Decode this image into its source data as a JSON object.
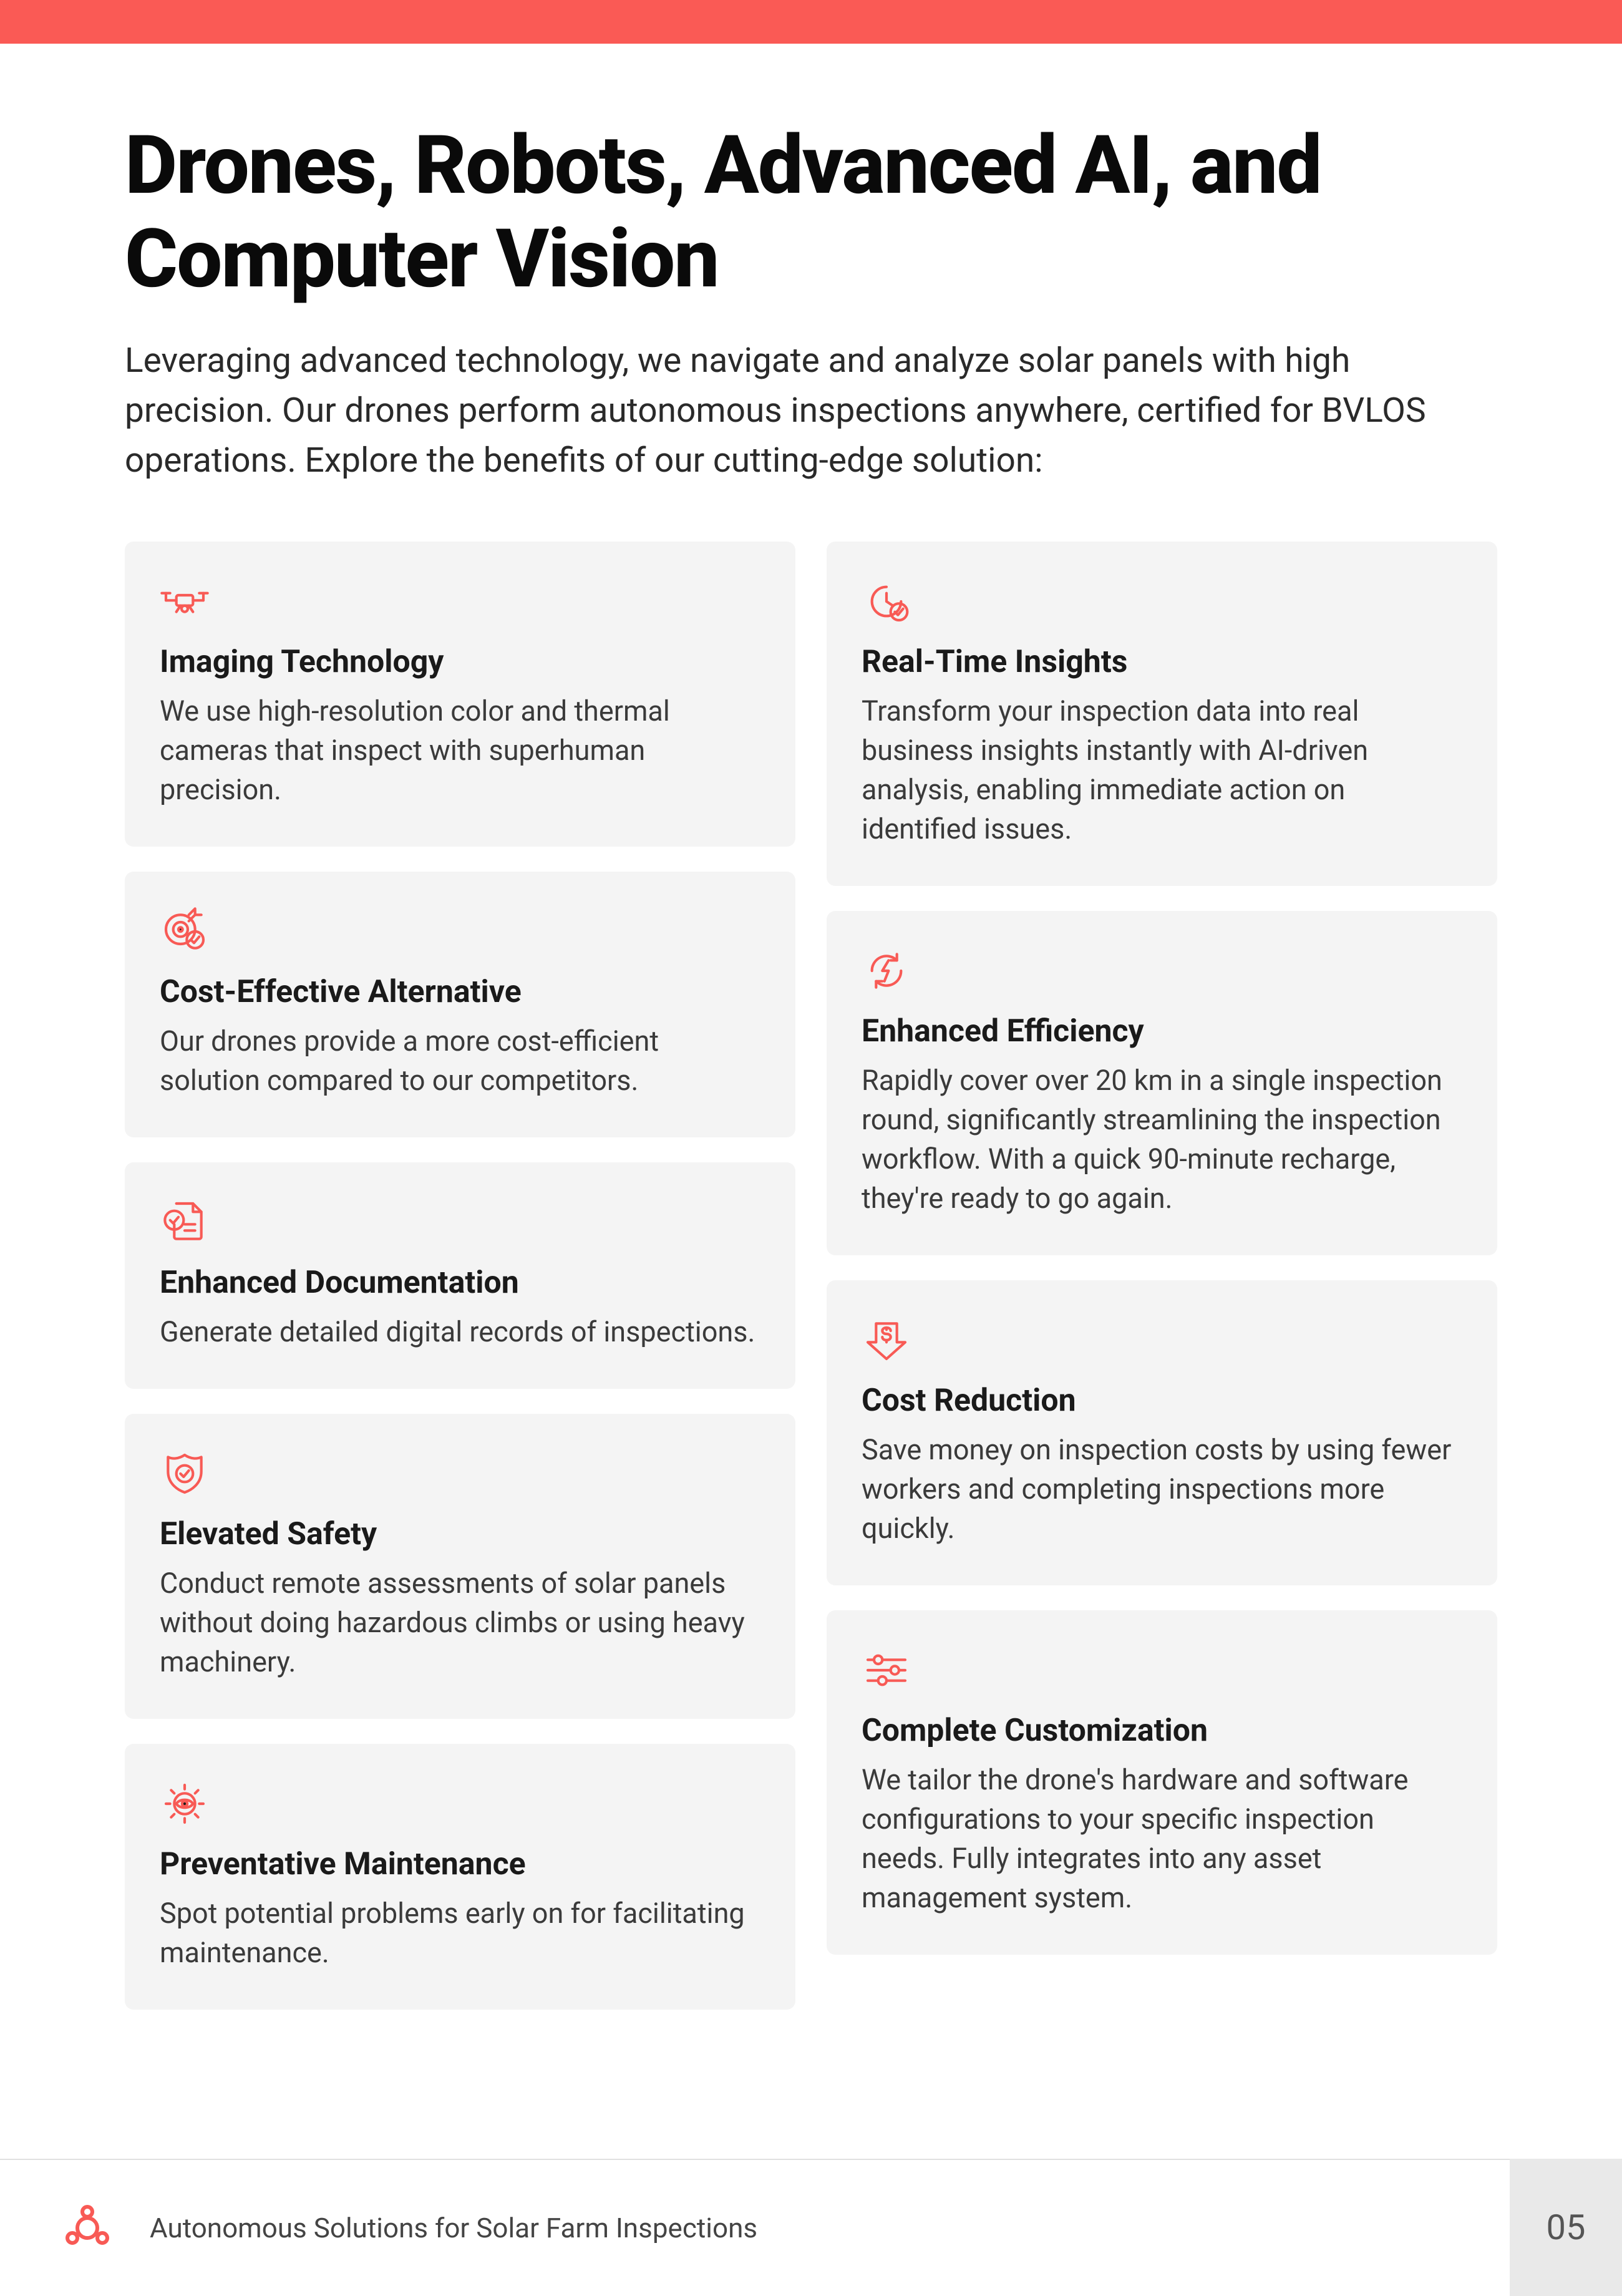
{
  "colors": {
    "accent": "#f85a55",
    "top_bar": "#fa5a55",
    "card_bg": "#f4f4f4",
    "text_primary": "#1a1a1a",
    "text_body": "#3a3a3a",
    "footer_border": "#e0e0e0",
    "page_num_bg": "#e9e9e9"
  },
  "header": {
    "title": "Drones, Robots, Advanced AI, and Computer Vision",
    "intro": "Leveraging advanced technology, we navigate and analyze solar panels with high precision. Our drones perform autonomous inspections anywhere, certified for BVLOS operations. Explore the benefits of our cutting-edge solution:"
  },
  "cards_left": [
    {
      "icon": "drone-icon",
      "title": "Imaging Technology",
      "body": "We use high-resolution color and thermal cameras that inspect with superhuman precision."
    },
    {
      "icon": "target-check-icon",
      "title": "Cost-Effective Alternative",
      "body": "Our drones provide a more cost-efficient solution compared to our competitors."
    },
    {
      "icon": "document-check-icon",
      "title": "Enhanced Documentation",
      "body": "Generate detailed digital records of inspections."
    },
    {
      "icon": "shield-check-icon",
      "title": "Elevated Safety",
      "body": "Conduct remote assessments of solar panels without doing hazardous climbs or using heavy machinery."
    },
    {
      "icon": "gear-eye-icon",
      "title": "Preventative Maintenance",
      "body": "Spot potential problems early on for facilitating maintenance."
    }
  ],
  "cards_right": [
    {
      "icon": "clock-check-icon",
      "title": "Real-Time Insights",
      "body": "Transform your inspection data into real business insights instantly with AI-driven analysis, enabling immediate action on identified issues."
    },
    {
      "icon": "bolt-cycle-icon",
      "title": "Enhanced Efficiency",
      "body": "Rapidly cover over 20 km in a single inspection round, significantly streamlining the inspection workflow. With a quick 90-minute recharge, they're ready to go again."
    },
    {
      "icon": "dollar-down-icon",
      "title": "Cost Reduction",
      "body": "Save money on inspection costs by using fewer workers and completing inspections more quickly."
    },
    {
      "icon": "sliders-icon",
      "title": "Complete Customization",
      "body": "We tailor the drone's hardware and software configurations to your specific inspection needs. Fully integrates into any asset management system."
    }
  ],
  "footer": {
    "text": "Autonomous Solutions for Solar Farm Inspections",
    "page_number": "05"
  }
}
